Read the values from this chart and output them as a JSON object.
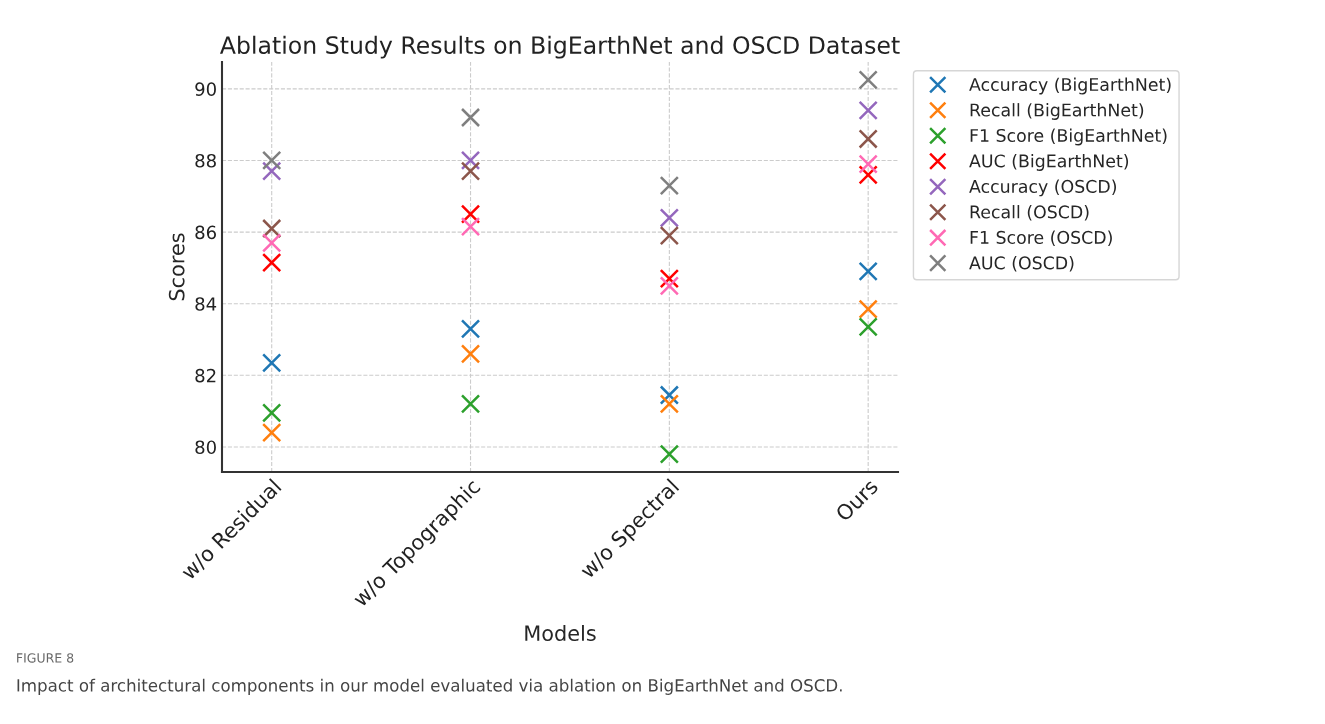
{
  "chart_data": {
    "type": "scatter",
    "title": "Ablation Study Results on BigEarthNet and OSCD Dataset",
    "xlabel": "Models",
    "ylabel": "Scores",
    "categories": [
      "w/o Residual",
      "w/o Topographic",
      "w/o Spectral",
      "Ours"
    ],
    "series": [
      {
        "name": "Accuracy (BigEarthNet)",
        "color": "#1f77b4",
        "values": [
          82.35,
          83.3,
          81.45,
          84.9
        ]
      },
      {
        "name": "Recall (BigEarthNet)",
        "color": "#ff7f0e",
        "values": [
          80.4,
          82.6,
          81.2,
          83.85
        ]
      },
      {
        "name": "F1 Score (BigEarthNet)",
        "color": "#2ca02c",
        "values": [
          80.95,
          81.2,
          79.8,
          83.35
        ]
      },
      {
        "name": "AUC (BigEarthNet)",
        "color": "#ff0000",
        "values": [
          85.15,
          86.5,
          84.7,
          87.6
        ]
      },
      {
        "name": "Accuracy (OSCD)",
        "color": "#9467bd",
        "values": [
          87.7,
          88.0,
          86.4,
          89.4
        ]
      },
      {
        "name": "Recall (OSCD)",
        "color": "#8c564b",
        "values": [
          86.1,
          87.7,
          85.9,
          88.6
        ]
      },
      {
        "name": "F1 Score (OSCD)",
        "color": "#ff69b4",
        "values": [
          85.7,
          86.15,
          84.5,
          87.9
        ]
      },
      {
        "name": "AUC (OSCD)",
        "color": "#7f7f7f",
        "values": [
          88.0,
          89.2,
          87.3,
          90.25
        ]
      }
    ],
    "ylim": [
      79.3,
      90.75
    ],
    "yticks": [
      80,
      82,
      84,
      86,
      88,
      90
    ],
    "grid": true,
    "legend": "top right",
    "marker": "cross",
    "annotations": [
      "FIGURE 8",
      "Impact of architectural components in our model evaluated via ablation on BigEarthNet and OSCD."
    ]
  }
}
